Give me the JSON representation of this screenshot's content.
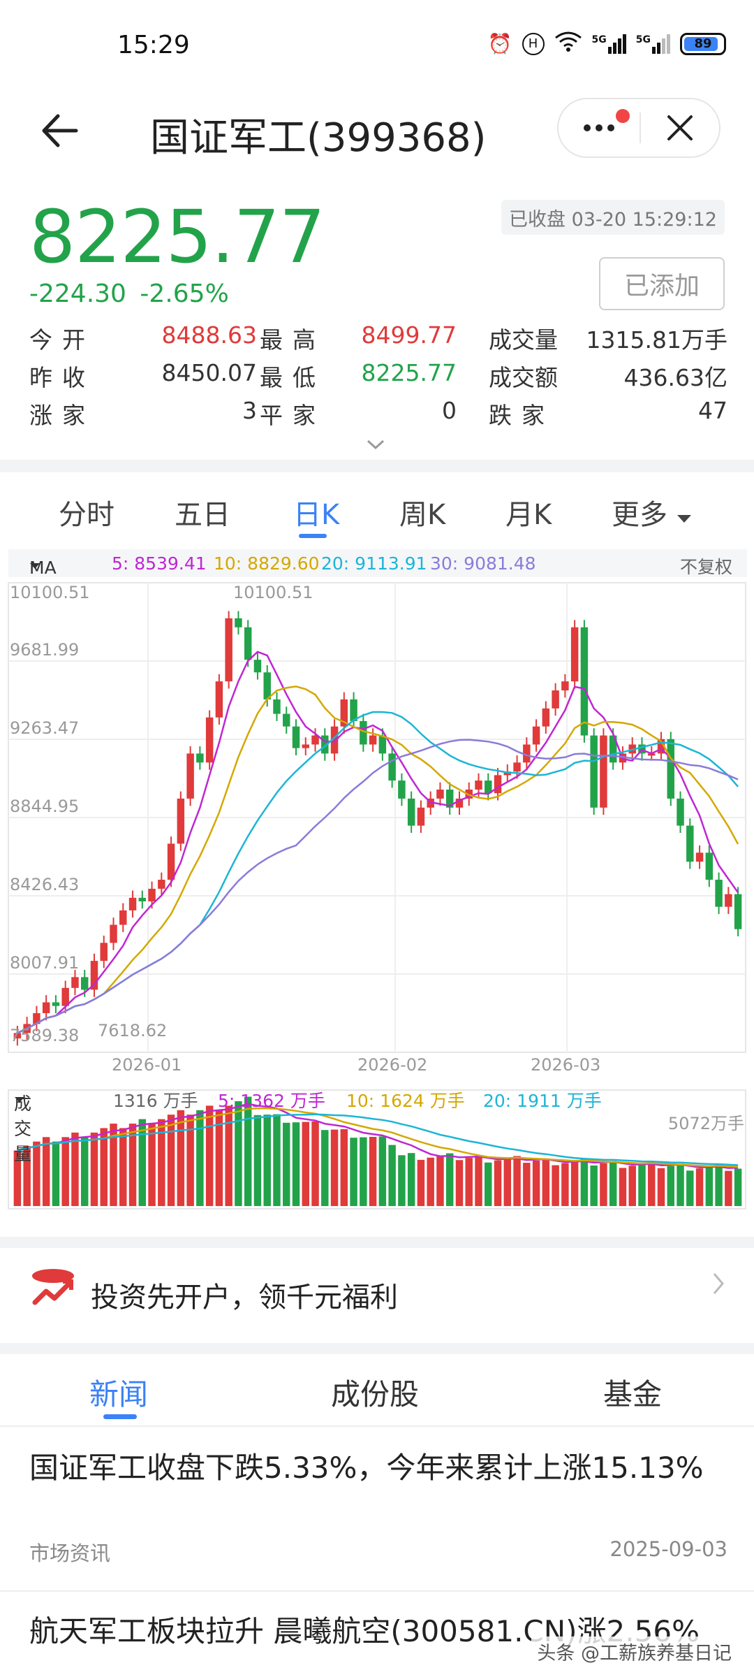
{
  "status_bar": {
    "time": "15:29",
    "battery": "89",
    "signal1": "5G",
    "signal2": "5G"
  },
  "header": {
    "title": "国证军工(399368)"
  },
  "quote": {
    "price": "8225.77",
    "change": "-224.30",
    "change_pct": "-2.65%",
    "status": "已收盘 03-20 15:29:12",
    "added_label": "已添加",
    "stats": {
      "open_label": "今开",
      "open": "8488.63",
      "high_label": "最高",
      "high": "8499.77",
      "volume_label": "成交量",
      "volume": "1315.81万手",
      "prev_close_label": "昨收",
      "prev_close": "8450.07",
      "low_label": "最低",
      "low": "8225.77",
      "amount_label": "成交额",
      "amount": "436.63亿",
      "up_label": "涨家",
      "up": "3",
      "flat_label": "平家",
      "flat": "0",
      "down_label": "跌家",
      "down": "47"
    }
  },
  "period_tabs": [
    "分时",
    "五日",
    "日K",
    "周K",
    "月K",
    "更多"
  ],
  "ma_bar": {
    "label": "MA",
    "ma5": "5: 8539.41",
    "ma10": "10: 8829.60",
    "ma20": "20: 9113.91",
    "ma30": "30: 9081.48",
    "adjust": "不复权",
    "colors": {
      "ma5": "#c026d3",
      "ma10": "#d4a800",
      "ma20": "#1cb5d6",
      "ma30": "#8b7bd8"
    }
  },
  "kline": {
    "y_ticks": [
      "10100.51",
      "9681.99",
      "9263.47",
      "8844.95",
      "8426.43",
      "8007.91",
      "7589.38"
    ],
    "x_ticks": [
      "2026-01",
      "2026-02",
      "2026-03"
    ],
    "max_label": "10100.51",
    "min_label": "7618.62"
  },
  "volume_bar": {
    "label": "成交量",
    "current": "1316 万手",
    "v5": "5: 1362 万手",
    "v10": "10: 1624 万手",
    "v20": "20: 1911 万手",
    "max": "5072万手"
  },
  "promo": {
    "text": "投资先开户，领千元福利"
  },
  "news_tabs": [
    "新闻",
    "成份股",
    "基金"
  ],
  "news": [
    {
      "title": "国证军工收盘下跌5.33%，今年来累计上涨15.13%",
      "source": "市场资讯",
      "date": "2025-09-03"
    },
    {
      "title": "航天军工板块拉升 晨曦航空(300581.CN)涨2.56%"
    }
  ],
  "watermark": "头条 @工薪族养基日记",
  "colors": {
    "up": "#e03a3a",
    "down": "#22a34a",
    "accent": "#3b82f6"
  }
}
